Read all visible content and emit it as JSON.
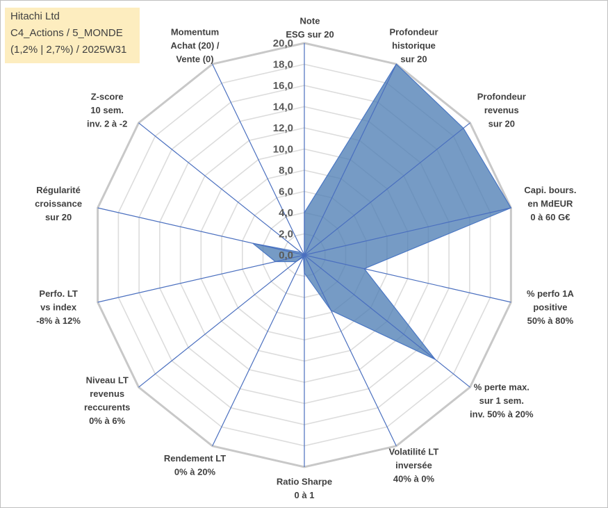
{
  "title": {
    "lines": [
      "Hitachi Ltd",
      "C4_Actions / 5_MONDE",
      "(1,2% | 2,7%) / 2025W31"
    ]
  },
  "colors": {
    "title_bg": "#fdedbf",
    "series_fill": "#4f7fb5",
    "series_stroke": "#4a77c4",
    "grid_outer": "#c8c8c8",
    "grid_inner": "#dcdcdc",
    "spoke": "#4a6fbf"
  },
  "chart_data": {
    "type": "radar",
    "rmin": 0,
    "rmax": 20,
    "tick_step": 2,
    "tick_labels": [
      "0,0",
      "2,0",
      "4,0",
      "6,0",
      "8,0",
      "10,0",
      "12,0",
      "14,0",
      "16,0",
      "18,0",
      "20,0"
    ],
    "categories": [
      [
        "Note",
        "ESG sur 20"
      ],
      [
        "Profondeur",
        "historique",
        "sur 20"
      ],
      [
        "Profondeur",
        "revenus",
        "sur 20"
      ],
      [
        "Capi. bours.",
        "en MdEUR",
        "0 à 60 G€"
      ],
      [
        "% perfo 1A",
        "positive",
        "50% à 80%"
      ],
      [
        "% perte max.",
        "sur 1 sem.",
        "inv. 50% à 20%"
      ],
      [
        "Volatilité LT",
        "inversée",
        "40% à 0%"
      ],
      [
        "Ratio Sharpe",
        "0 à 1"
      ],
      [
        "Rendement LT",
        "0% à 20%"
      ],
      [
        "Niveau LT",
        "revenus",
        "reccurents",
        "0% à 6%"
      ],
      [
        "Perfo. LT",
        "vs index",
        "-8% à 12%"
      ],
      [
        "Régularité",
        "croissance",
        "sur 20"
      ],
      [
        "Z-score",
        "10 sem.",
        "inv. 2 à -2"
      ],
      [
        "Momentum",
        "Achat (20) /",
        "Vente (0)"
      ]
    ],
    "series": [
      {
        "values": [
          4.0,
          20.0,
          19.2,
          20.0,
          5.8,
          15.8,
          5.8,
          1.7,
          0.2,
          1.0,
          2.8,
          5.0,
          0.4,
          0.0
        ]
      }
    ],
    "legend": "none"
  }
}
